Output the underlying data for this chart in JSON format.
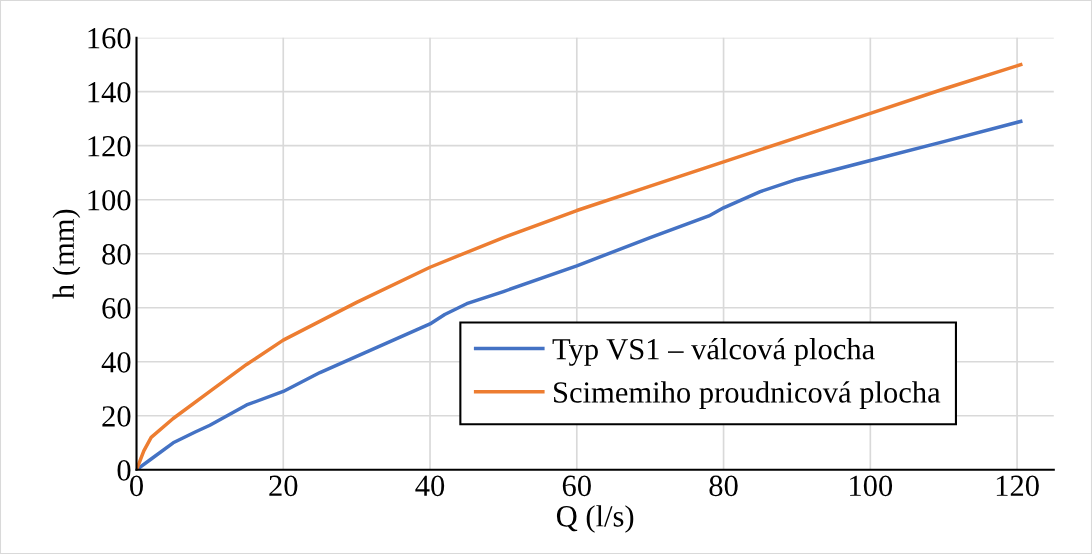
{
  "chart_data": {
    "type": "line",
    "xlabel": "Q (l/s)",
    "ylabel": "h (mm)",
    "xlim": [
      0,
      125
    ],
    "ylim": [
      0,
      160
    ],
    "xticks": [
      0,
      20,
      40,
      60,
      80,
      100,
      120
    ],
    "yticks": [
      0,
      20,
      40,
      60,
      80,
      100,
      120,
      140,
      160
    ],
    "grid": true,
    "legend": "bottom right",
    "marker": "none",
    "line_style": "solid",
    "series": [
      {
        "name": "Typ VS1 – válcová plocha",
        "color": "#4472c4",
        "x": [
          0,
          2,
          5,
          8,
          10,
          15,
          20,
          25,
          30,
          35,
          40,
          42,
          45,
          50,
          60,
          70,
          78,
          80,
          85,
          90,
          100,
          110,
          120.5
        ],
        "values": [
          0,
          4,
          10,
          14,
          16.5,
          24,
          29,
          36,
          42,
          48,
          54,
          57.5,
          61.5,
          66,
          75.5,
          86,
          94,
          97,
          103,
          107.5,
          114.5,
          121.5,
          129
        ]
      },
      {
        "name": "Scimemiho proudnicová plocha",
        "color": "#ed7d31",
        "x": [
          0,
          1,
          2,
          5,
          10,
          15,
          20,
          30,
          40,
          50,
          60,
          70,
          80,
          90,
          100,
          110,
          120.5
        ],
        "values": [
          0,
          7,
          12,
          19,
          29,
          39,
          48,
          62,
          75,
          86,
          96,
          105,
          114,
          123,
          132,
          141,
          150
        ]
      }
    ]
  }
}
